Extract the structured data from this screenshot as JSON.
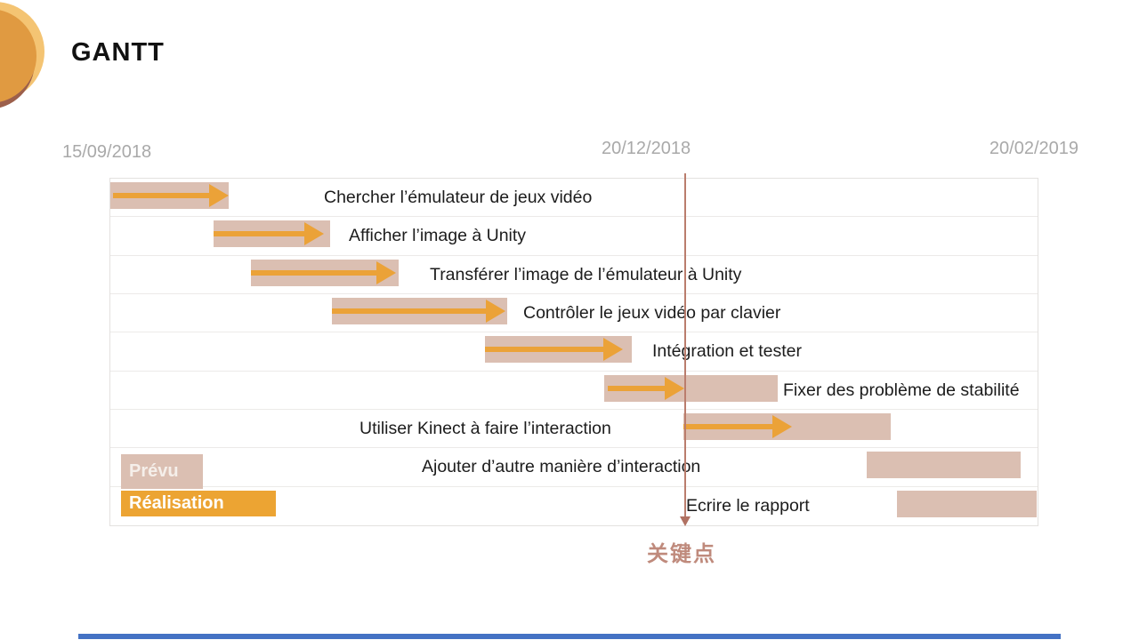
{
  "slide": {
    "title": "GANTT",
    "milestone_label": "关键点",
    "legend": {
      "planned": "Prévu",
      "realized": "Réalisation"
    },
    "colors": {
      "planned_bar": "#DBBFB2",
      "realized_arrow": "#EBA238",
      "legend_realized_bg": "#ECA433",
      "milestone_line": "#BA7D6D",
      "milestone_text": "#BF8A7C",
      "date_text": "#A9A9A9",
      "bottom_accent": "#4472C4"
    }
  },
  "chart_data": {
    "type": "gantt",
    "title": "GANTT",
    "timeline": {
      "start": "15/09/2018",
      "milestone": "20/12/2018",
      "end": "20/02/2019",
      "milestone_pct": 61.9
    },
    "legend": [
      "Prévu",
      "Réalisation"
    ],
    "tasks": [
      {
        "label": "Chercher l’émulateur de jeux vidéo",
        "planned_pct": [
          0.0,
          12.8
        ],
        "realized_pct": [
          0.3,
          12.8
        ],
        "label_pct": 23.0
      },
      {
        "label": "Afficher l’image à Unity",
        "planned_pct": [
          11.1,
          23.7
        ],
        "realized_pct": [
          11.1,
          23.0
        ],
        "label_pct": 25.7
      },
      {
        "label": "Transférer l’image de l’émulateur à Unity",
        "planned_pct": [
          15.2,
          31.1
        ],
        "realized_pct": [
          15.2,
          30.8
        ],
        "label_pct": 34.5
      },
      {
        "label": "Contrôler le jeux vidéo par clavier",
        "planned_pct": [
          23.9,
          42.8
        ],
        "realized_pct": [
          23.9,
          42.6
        ],
        "label_pct": 44.5
      },
      {
        "label": "Intégration et tester",
        "planned_pct": [
          40.4,
          56.2
        ],
        "realized_pct": [
          40.4,
          55.3
        ],
        "label_pct": 58.4
      },
      {
        "label": "Fixer des problème de stabilité",
        "planned_pct": [
          53.3,
          72.0
        ],
        "realized_pct": [
          53.6,
          61.9
        ],
        "label_pct": 72.6
      },
      {
        "label": "Utiliser Kinect à faire l’interaction",
        "planned_pct": [
          61.8,
          84.2
        ],
        "realized_pct": [
          61.8,
          73.5
        ],
        "label_pct": 26.9
      },
      {
        "label": "Ajouter d’autre manière d’interaction",
        "planned_pct": [
          81.6,
          98.2
        ],
        "realized_pct": null,
        "label_pct": 33.6
      },
      {
        "label": "Ecrire le rapport",
        "planned_pct": [
          84.8,
          99.9
        ],
        "realized_pct": null,
        "label_pct": 62.1
      }
    ]
  }
}
